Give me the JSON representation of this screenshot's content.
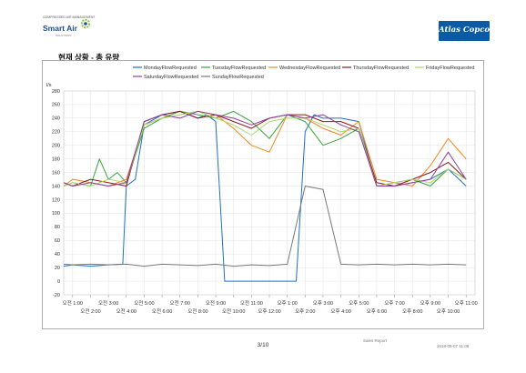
{
  "header": {
    "logo_left": {
      "tagline": "COMPRESSED AIR MANAGEMENT",
      "name": "Smart Air",
      "sub": "SOLUTIONS",
      "colors": {
        "text": "#1d4f91",
        "gear": "#8cc63f"
      }
    },
    "logo_right": {
      "text": "Atlas Copco",
      "bg_color": "#0a5aa6"
    }
  },
  "section_title": "현재 상황 - 총 유량",
  "footer": {
    "page": "3/10",
    "label": "Sales Report",
    "date": "2018-08-07 11:09"
  },
  "chart_data": {
    "type": "line",
    "ylabel": "l/s",
    "ylim": [
      -20,
      280
    ],
    "yticks": [
      -20,
      0,
      20,
      40,
      60,
      80,
      100,
      120,
      140,
      160,
      180,
      200,
      220,
      240,
      260,
      280
    ],
    "xlim": [
      0.5,
      23.5
    ],
    "xticks": [
      {
        "x": 1,
        "label": "오전 1:00"
      },
      {
        "x": 2,
        "label": "오전 2:00"
      },
      {
        "x": 3,
        "label": "오전 3:00"
      },
      {
        "x": 4,
        "label": "오전 4:00"
      },
      {
        "x": 5,
        "label": "오전 5:00"
      },
      {
        "x": 6,
        "label": "오전 6:00"
      },
      {
        "x": 7,
        "label": "오전 7:00"
      },
      {
        "x": 8,
        "label": "오전 8:00"
      },
      {
        "x": 9,
        "label": "오전 9:00"
      },
      {
        "x": 10,
        "label": "오전 10:00"
      },
      {
        "x": 11,
        "label": "오전 11:00"
      },
      {
        "x": 12,
        "label": "오후 12:00"
      },
      {
        "x": 13,
        "label": "오후 1:00"
      },
      {
        "x": 14,
        "label": "오후 2:00"
      },
      {
        "x": 15,
        "label": "오후 3:00"
      },
      {
        "x": 16,
        "label": "오후 4:00"
      },
      {
        "x": 17,
        "label": "오후 5:00"
      },
      {
        "x": 18,
        "label": "오후 6:00"
      },
      {
        "x": 19,
        "label": "오후 7:00"
      },
      {
        "x": 20,
        "label": "오후 8:00"
      },
      {
        "x": 21,
        "label": "오후 9:00"
      },
      {
        "x": 22,
        "label": "오후 10:00"
      },
      {
        "x": 23,
        "label": "오후 11:00"
      }
    ],
    "grid": true,
    "legend_position": "top",
    "series": [
      {
        "name": "MondayFlowRequested",
        "color": "#1f6fc0",
        "x": [
          0.5,
          1,
          2,
          3,
          3.8,
          4,
          4.5,
          5,
          6,
          7,
          8,
          8.5,
          9,
          9.5,
          10,
          10.5,
          11,
          11.5,
          12,
          12.5,
          13,
          13.5,
          14,
          14.5,
          15,
          16,
          17,
          18,
          19,
          20,
          21,
          22,
          23
        ],
        "y": [
          22,
          24,
          22,
          24,
          25,
          140,
          150,
          230,
          245,
          250,
          240,
          245,
          235,
          0,
          0,
          0,
          0,
          0,
          0,
          0,
          0,
          0,
          220,
          245,
          240,
          240,
          235,
          140,
          140,
          145,
          150,
          165,
          140
        ]
      },
      {
        "name": "TuesdayFlowRequested",
        "color": "#3aa33a",
        "x": [
          0.5,
          1,
          2,
          2.5,
          3,
          3.5,
          4,
          5,
          6,
          7,
          8,
          9,
          10,
          11,
          12,
          13,
          14,
          15,
          16,
          17,
          18,
          19,
          20,
          21,
          22,
          23
        ],
        "y": [
          140,
          145,
          140,
          180,
          150,
          160,
          145,
          225,
          240,
          250,
          245,
          240,
          250,
          235,
          210,
          245,
          235,
          200,
          210,
          225,
          140,
          145,
          150,
          140,
          165,
          150
        ]
      },
      {
        "name": "WednesdayFlowRequested",
        "color": "#f5861f",
        "x": [
          0.5,
          1,
          2,
          3,
          4,
          5,
          6,
          7,
          8,
          9,
          10,
          11,
          12,
          13,
          14,
          15,
          16,
          17,
          18,
          19,
          20,
          21,
          22,
          23
        ],
        "y": [
          140,
          150,
          145,
          140,
          150,
          230,
          240,
          245,
          250,
          245,
          225,
          200,
          190,
          245,
          240,
          225,
          215,
          235,
          150,
          145,
          140,
          170,
          210,
          180
        ]
      },
      {
        "name": "ThursdayFlowRequested",
        "color": "#8b1a1a",
        "x": [
          0.5,
          1,
          2,
          3,
          4,
          5,
          6,
          7,
          8,
          9,
          10,
          11,
          12,
          13,
          14,
          15,
          16,
          17,
          18,
          19,
          20,
          21,
          22,
          23
        ],
        "y": [
          145,
          140,
          150,
          145,
          140,
          235,
          245,
          250,
          240,
          245,
          235,
          225,
          240,
          245,
          245,
          235,
          235,
          225,
          145,
          140,
          150,
          160,
          175,
          150
        ]
      },
      {
        "name": "FridayFlowRequested",
        "color": "#a8d86a",
        "x": [
          0.5,
          1,
          2,
          3,
          4,
          5,
          6,
          7,
          8,
          9,
          10,
          11,
          12,
          13,
          14,
          15,
          16,
          17,
          18,
          19,
          20,
          21,
          22,
          23
        ],
        "y": [
          140,
          145,
          140,
          150,
          145,
          230,
          240,
          245,
          250,
          240,
          230,
          215,
          235,
          240,
          240,
          230,
          220,
          225,
          140,
          145,
          150,
          145,
          165,
          150
        ]
      },
      {
        "name": "SaturdayFlowRequested",
        "color": "#8e3fa0",
        "x": [
          0.5,
          1,
          2,
          3,
          4,
          5,
          6,
          7,
          8,
          9,
          10,
          11,
          12,
          13,
          14,
          15,
          16,
          17,
          18,
          19,
          20,
          21,
          22,
          23
        ],
        "y": [
          145,
          140,
          145,
          140,
          145,
          235,
          245,
          240,
          250,
          245,
          240,
          230,
          240,
          245,
          240,
          245,
          230,
          220,
          140,
          140,
          145,
          150,
          190,
          150
        ]
      },
      {
        "name": "SundayFlowRequested",
        "color": "#777777",
        "x": [
          0.5,
          1,
          2,
          3,
          4,
          5,
          6,
          7,
          8,
          9,
          10,
          11,
          12,
          13,
          14,
          15,
          16,
          17,
          18,
          19,
          20,
          21,
          22,
          23
        ],
        "y": [
          25,
          24,
          25,
          24,
          25,
          22,
          25,
          24,
          23,
          25,
          22,
          24,
          23,
          25,
          140,
          135,
          25,
          24,
          25,
          24,
          25,
          24,
          25,
          24
        ]
      }
    ]
  }
}
